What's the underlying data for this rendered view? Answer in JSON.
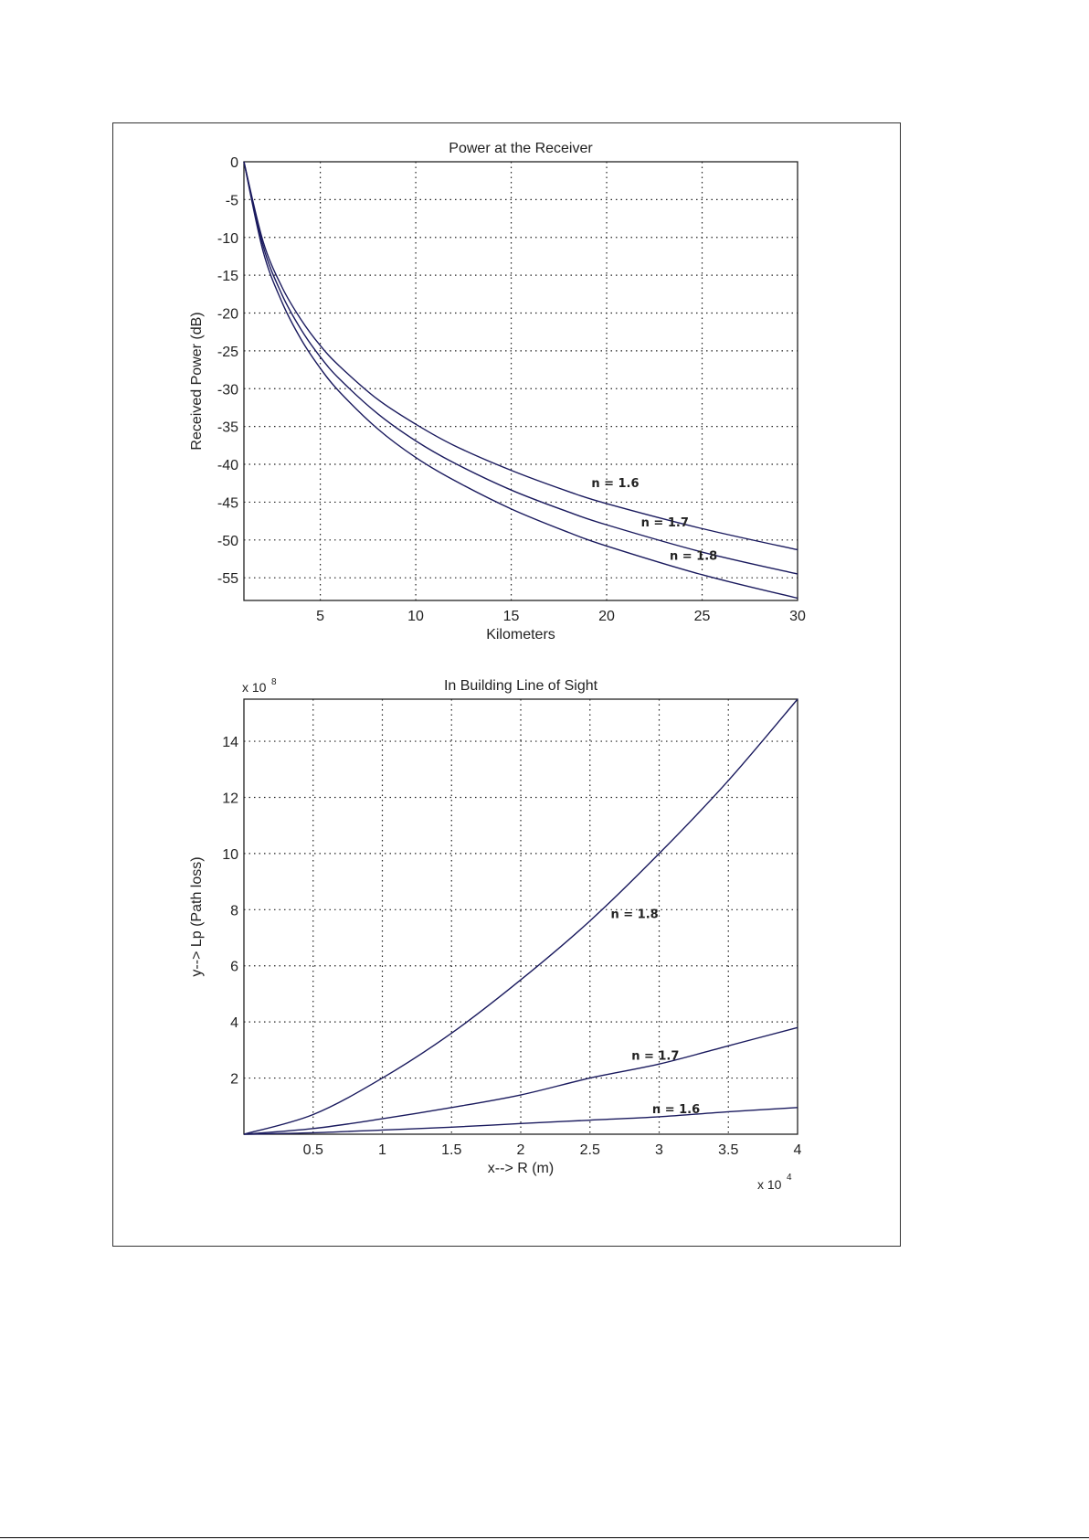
{
  "chart_data": [
    {
      "type": "line",
      "title": "Power at the Receiver",
      "xlabel": "Kilometers",
      "ylabel": "Received Power (dB)",
      "xlim": [
        1,
        30
      ],
      "ylim": [
        -58,
        0
      ],
      "xticks": [
        5,
        10,
        15,
        20,
        25,
        30
      ],
      "yticks": [
        0,
        -5,
        -10,
        -15,
        -20,
        -25,
        -30,
        -35,
        -40,
        -45,
        -50,
        -55
      ],
      "grid": true,
      "x": [
        1,
        2,
        3,
        4,
        5,
        6,
        8,
        10,
        12,
        15,
        18,
        20,
        25,
        30
      ],
      "series": [
        {
          "name": "n = 1.6",
          "values": [
            0,
            -10.5,
            -16.6,
            -20.9,
            -24.3,
            -27.0,
            -31.4,
            -34.7,
            -37.5,
            -40.8,
            -43.6,
            -45.2,
            -48.5,
            -51.3
          ],
          "label_at": [
            19.2,
            -43
          ]
        },
        {
          "name": "n = 1.7",
          "values": [
            0,
            -11.1,
            -17.6,
            -22.2,
            -25.8,
            -28.7,
            -33.3,
            -36.9,
            -39.8,
            -43.4,
            -46.3,
            -48.0,
            -51.6,
            -54.5
          ],
          "label_at": [
            21.8,
            -48.2
          ]
        },
        {
          "name": "n = 1.8",
          "values": [
            0,
            -11.8,
            -18.6,
            -23.5,
            -27.3,
            -30.4,
            -35.3,
            -39.1,
            -42.1,
            -45.9,
            -49.0,
            -50.8,
            -54.6,
            -57.7
          ],
          "label_at": [
            23.3,
            -52.6
          ]
        }
      ],
      "color": "#1a1a5e"
    },
    {
      "type": "line",
      "title": "In Building Line of Sight",
      "xlabel": "x--> R (m)",
      "ylabel": "y--> Lp (Path loss)",
      "x_multiplier": "x 10",
      "x_multiplier_exp": "4",
      "y_multiplier": "x 10",
      "y_multiplier_exp": "8",
      "xlim": [
        0,
        4
      ],
      "ylim": [
        0,
        15.5
      ],
      "xticks": [
        0.5,
        1,
        1.5,
        2,
        2.5,
        3,
        3.5,
        4
      ],
      "yticks": [
        2,
        4,
        6,
        8,
        10,
        12,
        14
      ],
      "grid": true,
      "x": [
        0,
        0.5,
        1,
        1.5,
        2,
        2.5,
        3,
        3.5,
        4
      ],
      "series": [
        {
          "name": "n = 1.8",
          "values": [
            0,
            0.7,
            2.0,
            3.6,
            5.5,
            7.6,
            10.0,
            12.6,
            15.5
          ],
          "label_at": [
            2.65,
            7.7
          ]
        },
        {
          "name": "n = 1.7",
          "values": [
            0,
            0.2,
            0.55,
            0.95,
            1.4,
            2.0,
            2.5,
            3.15,
            3.8
          ],
          "label_at": [
            2.8,
            2.65
          ]
        },
        {
          "name": "n = 1.6",
          "values": [
            0,
            0.05,
            0.15,
            0.25,
            0.38,
            0.5,
            0.62,
            0.8,
            0.95
          ],
          "label_at": [
            2.95,
            0.75
          ]
        }
      ],
      "color": "#1a1a5e"
    }
  ]
}
